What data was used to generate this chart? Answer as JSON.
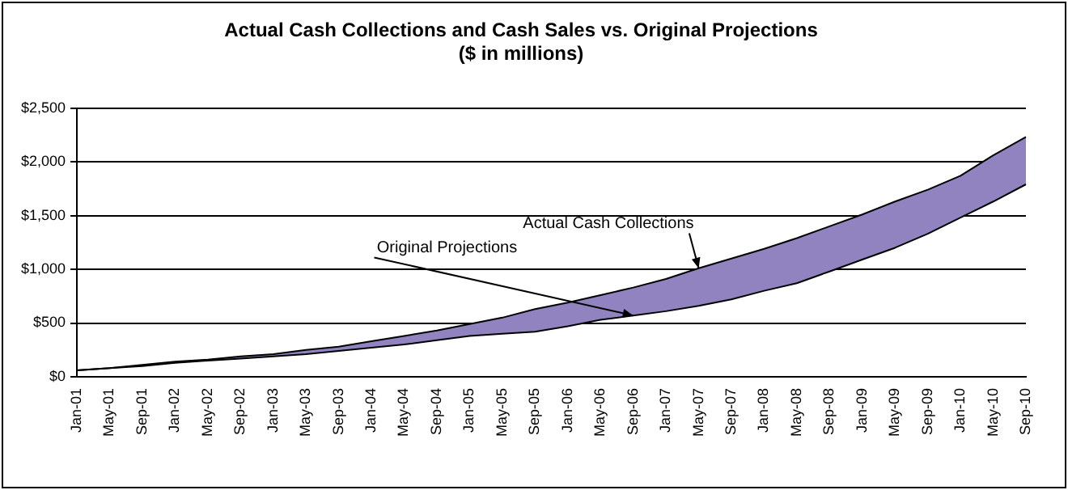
{
  "chart_data": {
    "type": "line",
    "title": "Actual Cash Collections and Cash Sales vs. Original Projections",
    "subtitle": "($ in millions)",
    "categories": [
      "Jan-01",
      "May-01",
      "Sep-01",
      "Jan-02",
      "May-02",
      "Sep-02",
      "Jan-03",
      "May-03",
      "Sep-03",
      "Jan-04",
      "May-04",
      "Sep-04",
      "Jan-05",
      "May-05",
      "Sep-05",
      "Jan-06",
      "May-06",
      "Sep-06",
      "Jan-07",
      "May-07",
      "Sep-07",
      "Jan-08",
      "May-08",
      "Sep-08",
      "Jan-09",
      "May-09",
      "Sep-09",
      "Jan-10",
      "May-10",
      "Sep-10"
    ],
    "series": [
      {
        "name": "Original Projections",
        "type": "line",
        "color": "#000000",
        "values": [
          60,
          80,
          100,
          130,
          150,
          170,
          190,
          210,
          240,
          270,
          300,
          340,
          380,
          400,
          420,
          470,
          530,
          570,
          610,
          660,
          720,
          800,
          870,
          980,
          1090,
          1200,
          1330,
          1480,
          1630,
          1790
        ]
      },
      {
        "name": "Actual Cash Collections",
        "type": "area",
        "color": "#9183c0",
        "values": [
          60,
          80,
          110,
          140,
          160,
          190,
          210,
          250,
          280,
          330,
          380,
          430,
          490,
          550,
          630,
          690,
          760,
          830,
          910,
          1010,
          1100,
          1190,
          1290,
          1400,
          1510,
          1630,
          1740,
          1870,
          2060,
          2230
        ]
      }
    ],
    "ylim": [
      0,
      2500
    ],
    "yticks": [
      {
        "value": 0,
        "label": "$0"
      },
      {
        "value": 500,
        "label": "$500"
      },
      {
        "value": 1000,
        "label": "$1,000"
      },
      {
        "value": 1500,
        "label": "$1,500"
      },
      {
        "value": 2000,
        "label": "$2,000"
      },
      {
        "value": 2500,
        "label": "$2,500"
      }
    ],
    "grid": "y",
    "legend": false,
    "marker": "none",
    "line_style": "solid"
  }
}
